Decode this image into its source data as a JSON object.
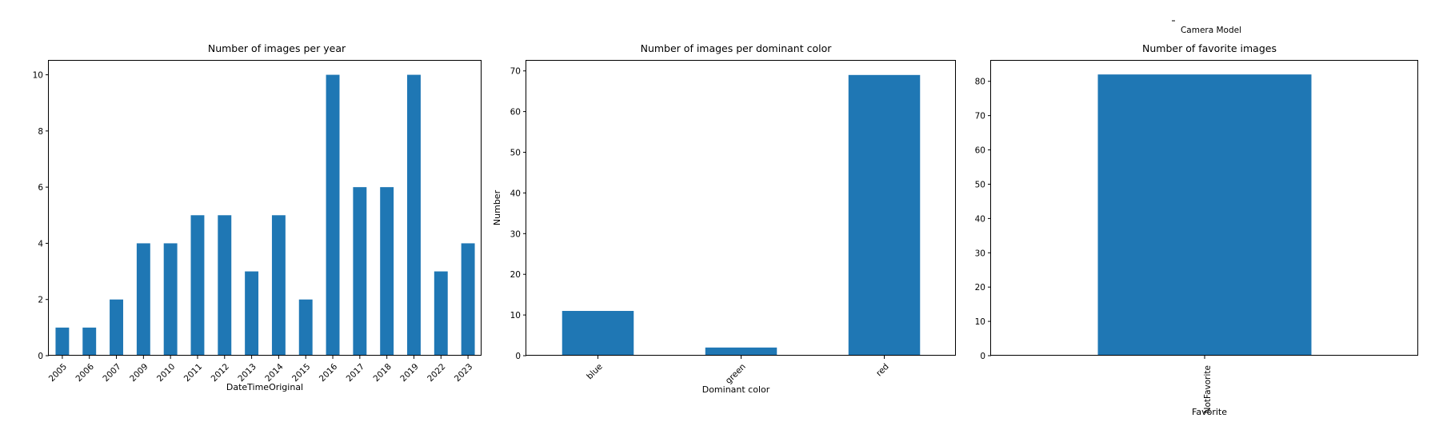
{
  "stray_text": {
    "caption": "Camera Model"
  },
  "chart_data": [
    {
      "type": "bar",
      "title": "Number of images per year",
      "xlabel": "DateTimeOriginal",
      "ylabel": "",
      "categories": [
        "2005",
        "2006",
        "2007",
        "2009",
        "2010",
        "2011",
        "2012",
        "2013",
        "2014",
        "2015",
        "2016",
        "2017",
        "2018",
        "2019",
        "2022",
        "2023"
      ],
      "values": [
        1,
        1,
        2,
        4,
        4,
        5,
        5,
        3,
        5,
        2,
        10,
        6,
        6,
        10,
        3,
        4
      ],
      "ylim": [
        0,
        10.5
      ],
      "yticks": [
        0,
        2,
        4,
        6,
        8,
        10
      ],
      "xtick_rotation": 45,
      "color": "#1f77b4",
      "grid": false
    },
    {
      "type": "bar",
      "title": "Number of images per dominant color",
      "xlabel": "Dominant color",
      "ylabel": "Number",
      "categories": [
        "blue",
        "green",
        "red"
      ],
      "values": [
        11,
        2,
        69
      ],
      "ylim": [
        0,
        72.5
      ],
      "yticks": [
        0,
        10,
        20,
        30,
        40,
        50,
        60,
        70
      ],
      "xtick_rotation": 45,
      "color": "#1f77b4",
      "grid": false
    },
    {
      "type": "bar",
      "title": "Number of favorite images",
      "xlabel": "Favorite",
      "ylabel": "",
      "categories": [
        "NotFavorite"
      ],
      "values": [
        82
      ],
      "ylim": [
        0,
        86
      ],
      "yticks": [
        0,
        10,
        20,
        30,
        40,
        50,
        60,
        70,
        80
      ],
      "xtick_rotation": 90,
      "color": "#1f77b4",
      "grid": false
    }
  ]
}
